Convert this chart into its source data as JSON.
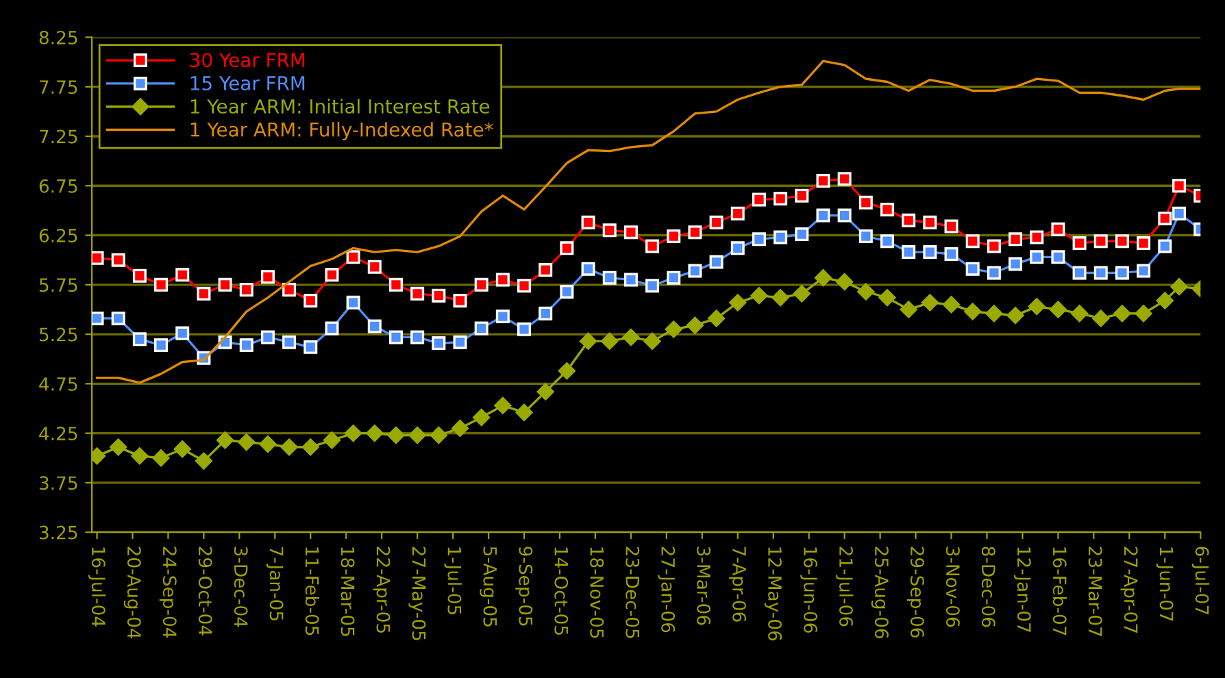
{
  "chart_data": {
    "type": "line",
    "x": [
      "2004-07-16",
      "2004-08-06",
      "2004-08-27",
      "2004-09-17",
      "2004-10-08",
      "2004-10-29",
      "2004-11-19",
      "2004-12-10",
      "2004-12-31",
      "2005-01-21",
      "2005-02-11",
      "2005-03-04",
      "2005-03-25",
      "2005-04-15",
      "2005-05-06",
      "2005-05-27",
      "2005-06-17",
      "2005-07-08",
      "2005-07-29",
      "2005-08-19",
      "2005-09-09",
      "2005-09-30",
      "2005-10-21",
      "2005-11-11",
      "2005-12-02",
      "2005-12-23",
      "2006-01-13",
      "2006-02-03",
      "2006-02-24",
      "2006-03-17",
      "2006-04-07",
      "2006-04-28",
      "2006-05-19",
      "2006-06-09",
      "2006-06-30",
      "2006-07-21",
      "2006-08-11",
      "2006-09-01",
      "2006-09-22",
      "2006-10-13",
      "2006-11-03",
      "2006-11-24",
      "2006-12-15",
      "2007-01-05",
      "2007-01-26",
      "2007-02-16",
      "2007-03-09",
      "2007-03-30",
      "2007-04-20",
      "2007-05-11",
      "2007-06-01",
      "2007-06-15",
      "2007-07-06"
    ],
    "series": [
      {
        "name": "30 Year FRM",
        "color": "#ff0000",
        "marker": "square",
        "values": [
          6.02,
          6.0,
          5.84,
          5.75,
          5.85,
          5.66,
          5.75,
          5.7,
          5.83,
          5.7,
          5.59,
          5.85,
          6.03,
          5.93,
          5.75,
          5.66,
          5.64,
          5.59,
          5.75,
          5.8,
          5.74,
          5.9,
          6.12,
          6.38,
          6.3,
          6.28,
          6.14,
          6.24,
          6.28,
          6.38,
          6.47,
          6.61,
          6.62,
          6.65,
          6.8,
          6.82,
          6.58,
          6.51,
          6.4,
          6.38,
          6.34,
          6.19,
          6.14,
          6.21,
          6.23,
          6.31,
          6.17,
          6.19,
          6.19,
          6.17,
          6.42,
          6.75,
          6.65
        ]
      },
      {
        "name": "15 Year FRM",
        "color": "#4f8fff",
        "marker": "square",
        "values": [
          5.41,
          5.41,
          5.2,
          5.14,
          5.26,
          5.01,
          5.17,
          5.14,
          5.22,
          5.17,
          5.12,
          5.31,
          5.57,
          5.33,
          5.22,
          5.22,
          5.16,
          5.17,
          5.31,
          5.43,
          5.3,
          5.46,
          5.68,
          5.91,
          5.82,
          5.8,
          5.74,
          5.82,
          5.89,
          5.98,
          6.12,
          6.21,
          6.23,
          6.26,
          6.45,
          6.45,
          6.24,
          6.19,
          6.08,
          6.08,
          6.06,
          5.91,
          5.87,
          5.96,
          6.03,
          6.03,
          5.87,
          5.87,
          5.87,
          5.89,
          6.14,
          6.47,
          6.31
        ]
      },
      {
        "name": "1 Year ARM: Initial Interest Rate",
        "color": "#9aaa00",
        "marker": "diamond",
        "values": [
          4.02,
          4.11,
          4.02,
          4.0,
          4.09,
          3.97,
          4.18,
          4.16,
          4.14,
          4.11,
          4.11,
          4.18,
          4.25,
          4.25,
          4.23,
          4.23,
          4.23,
          4.3,
          4.41,
          4.53,
          4.46,
          4.67,
          4.88,
          5.18,
          5.18,
          5.22,
          5.18,
          5.3,
          5.34,
          5.41,
          5.57,
          5.64,
          5.62,
          5.66,
          5.82,
          5.78,
          5.68,
          5.62,
          5.5,
          5.57,
          5.55,
          5.48,
          5.46,
          5.44,
          5.53,
          5.5,
          5.46,
          5.41,
          5.46,
          5.46,
          5.59,
          5.73,
          5.71
        ]
      },
      {
        "name": "1 Year ARM: Fully-Indexed Rate*",
        "color": "#e08a00",
        "marker": "none",
        "values": [
          4.81,
          4.81,
          4.76,
          4.85,
          4.97,
          4.99,
          5.22,
          5.48,
          5.62,
          5.78,
          5.94,
          6.01,
          6.12,
          6.08,
          6.1,
          6.08,
          6.14,
          6.24,
          6.49,
          6.65,
          6.51,
          6.74,
          6.98,
          7.11,
          7.1,
          7.14,
          7.16,
          7.3,
          7.48,
          7.5,
          7.62,
          7.69,
          7.75,
          7.77,
          8.01,
          7.97,
          7.83,
          7.8,
          7.71,
          7.82,
          7.78,
          7.71,
          7.71,
          7.75,
          7.83,
          7.81,
          7.69,
          7.69,
          7.66,
          7.62,
          7.71,
          7.73,
          7.73
        ]
      }
    ],
    "xlim": [
      "2004-07-11",
      "2007-07-06"
    ],
    "xticks": [
      {
        "value": "2004-07-16",
        "label": "16-Jul-04"
      },
      {
        "value": "2004-08-20",
        "label": "20-Aug-04"
      },
      {
        "value": "2004-09-24",
        "label": "24-Sep-04"
      },
      {
        "value": "2004-10-29",
        "label": "29-Oct-04"
      },
      {
        "value": "2004-12-03",
        "label": "3-Dec-04"
      },
      {
        "value": "2005-01-07",
        "label": "7-Jan-05"
      },
      {
        "value": "2005-02-11",
        "label": "11-Feb-05"
      },
      {
        "value": "2005-03-18",
        "label": "18-Mar-05"
      },
      {
        "value": "2005-04-22",
        "label": "22-Apr-05"
      },
      {
        "value": "2005-05-27",
        "label": "27-May-05"
      },
      {
        "value": "2005-07-01",
        "label": "1-Jul-05"
      },
      {
        "value": "2005-08-05",
        "label": "5-Aug-05"
      },
      {
        "value": "2005-09-09",
        "label": "9-Sep-05"
      },
      {
        "value": "2005-10-14",
        "label": "14-Oct-05"
      },
      {
        "value": "2005-11-18",
        "label": "18-Nov-05"
      },
      {
        "value": "2005-12-23",
        "label": "23-Dec-05"
      },
      {
        "value": "2006-01-27",
        "label": "27-Jan-06"
      },
      {
        "value": "2006-03-03",
        "label": "3-Mar-06"
      },
      {
        "value": "2006-04-07",
        "label": "7-Apr-06"
      },
      {
        "value": "2006-05-12",
        "label": "12-May-06"
      },
      {
        "value": "2006-06-16",
        "label": "16-Jun-06"
      },
      {
        "value": "2006-07-21",
        "label": "21-Jul-06"
      },
      {
        "value": "2006-08-25",
        "label": "25-Aug-06"
      },
      {
        "value": "2006-09-29",
        "label": "29-Sep-06"
      },
      {
        "value": "2006-11-03",
        "label": "3-Nov-06"
      },
      {
        "value": "2006-12-08",
        "label": "8-Dec-06"
      },
      {
        "value": "2007-01-12",
        "label": "12-Jan-07"
      },
      {
        "value": "2007-02-16",
        "label": "16-Feb-07"
      },
      {
        "value": "2007-03-23",
        "label": "23-Mar-07"
      },
      {
        "value": "2007-04-27",
        "label": "27-Apr-07"
      },
      {
        "value": "2007-06-01",
        "label": "1-Jun-07"
      },
      {
        "value": "2007-07-06",
        "label": "6-Jul-07"
      }
    ],
    "ylim": [
      3.25,
      8.25
    ],
    "yticks": [
      3.25,
      3.75,
      4.25,
      4.75,
      5.25,
      5.75,
      6.25,
      6.75,
      7.25,
      7.75,
      8.25
    ],
    "grid": "y",
    "legend": "top left"
  }
}
